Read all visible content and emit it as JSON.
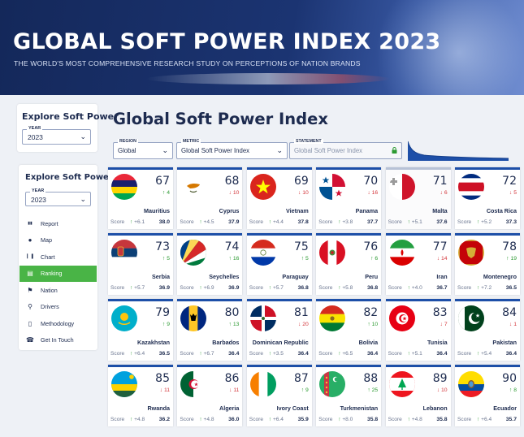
{
  "banner": {
    "title": "GLOBAL SOFT POWER INDEX 2023",
    "subtitle": "THE WORLD'S MOST COMPREHENSIVE RESEARCH STUDY ON PERCEPTIONS OF NATION BRANDS"
  },
  "sidebar_top": {
    "title": "Explore Soft Power",
    "year_label": "YEAR",
    "year_value": "2023"
  },
  "sidebar": {
    "title": "Explore Soft Power",
    "year_label": "YEAR",
    "year_value": "2023",
    "nav": [
      {
        "label": "Report",
        "icon": "book-icon",
        "active": false
      },
      {
        "label": "Map",
        "icon": "globe-icon",
        "active": false
      },
      {
        "label": "Chart",
        "icon": "bar-chart-icon",
        "active": false
      },
      {
        "label": "Ranking",
        "icon": "podium-icon",
        "active": true
      },
      {
        "label": "Nation",
        "icon": "flag-icon",
        "active": false
      },
      {
        "label": "Drivers",
        "icon": "search-icon",
        "active": false
      },
      {
        "label": "Methodology",
        "icon": "document-icon",
        "active": false
      },
      {
        "label": "Get In Touch",
        "icon": "phone-icon",
        "active": false
      }
    ]
  },
  "main": {
    "title": "Global Soft Power Index",
    "filters": {
      "region_label": "REGION",
      "region_value": "Global",
      "metric_label": "METRIC",
      "metric_value": "Global Soft Power Index",
      "statement_label": "STATEMENT",
      "statement_value": "Global Soft Power Index"
    },
    "score_label": "Score",
    "colors": {
      "up": "#2c9a32",
      "down": "#d3363b",
      "active_nav": "#49b446",
      "card_top": "#1d4fa8"
    },
    "cards": [
      {
        "rank": "67",
        "change": "4",
        "dir": "up",
        "name": "Mauritius",
        "delta": "+6.1",
        "score": "38.0",
        "flag": "mauritius-flag-icon"
      },
      {
        "rank": "68",
        "change": "10",
        "dir": "down",
        "name": "Cyprus",
        "delta": "+4.5",
        "score": "37.9",
        "flag": "cyprus-flag-icon"
      },
      {
        "rank": "69",
        "change": "10",
        "dir": "down",
        "name": "Vietnam",
        "delta": "+4.4",
        "score": "37.8",
        "flag": "vietnam-flag-icon"
      },
      {
        "rank": "70",
        "change": "16",
        "dir": "down",
        "name": "Panama",
        "delta": "+3.8",
        "score": "37.7",
        "flag": "panama-flag-icon"
      },
      {
        "rank": "71",
        "change": "6",
        "dir": "down",
        "name": "Malta",
        "delta": "+5.1",
        "score": "37.6",
        "flag": "malta-flag-icon",
        "selected": true
      },
      {
        "rank": "72",
        "change": "5",
        "dir": "down",
        "name": "Costa Rica",
        "delta": "+5.2",
        "score": "37.3",
        "flag": "costa-rica-flag-icon"
      },
      {
        "rank": "73",
        "change": "5",
        "dir": "up",
        "name": "Serbia",
        "delta": "+5.7",
        "score": "36.9",
        "flag": "serbia-flag-icon"
      },
      {
        "rank": "74",
        "change": "16",
        "dir": "up",
        "name": "Seychelles",
        "delta": "+6.9",
        "score": "36.9",
        "flag": "seychelles-flag-icon"
      },
      {
        "rank": "75",
        "change": "5",
        "dir": "up",
        "name": "Paraguay",
        "delta": "+5.7",
        "score": "36.8",
        "flag": "paraguay-flag-icon"
      },
      {
        "rank": "76",
        "change": "6",
        "dir": "up",
        "name": "Peru",
        "delta": "+5.8",
        "score": "36.8",
        "flag": "peru-flag-icon"
      },
      {
        "rank": "77",
        "change": "14",
        "dir": "down",
        "name": "Iran",
        "delta": "+4.0",
        "score": "36.7",
        "flag": "iran-flag-icon"
      },
      {
        "rank": "78",
        "change": "19",
        "dir": "up",
        "name": "Montenegro",
        "delta": "+7.2",
        "score": "36.5",
        "flag": "montenegro-flag-icon"
      },
      {
        "rank": "79",
        "change": "9",
        "dir": "up",
        "name": "Kazakhstan",
        "delta": "+6.4",
        "score": "36.5",
        "flag": "kazakhstan-flag-icon"
      },
      {
        "rank": "80",
        "change": "13",
        "dir": "up",
        "name": "Barbados",
        "delta": "+6.7",
        "score": "36.4",
        "flag": "barbados-flag-icon"
      },
      {
        "rank": "81",
        "change": "20",
        "dir": "down",
        "name": "Dominican Republic",
        "delta": "+3.5",
        "score": "36.4",
        "flag": "dominican-republic-flag-icon"
      },
      {
        "rank": "82",
        "change": "10",
        "dir": "up",
        "name": "Bolivia",
        "delta": "+6.5",
        "score": "36.4",
        "flag": "bolivia-flag-icon"
      },
      {
        "rank": "83",
        "change": "7",
        "dir": "down",
        "name": "Tunisia",
        "delta": "+5.1",
        "score": "36.4",
        "flag": "tunisia-flag-icon"
      },
      {
        "rank": "84",
        "change": "1",
        "dir": "down",
        "name": "Pakistan",
        "delta": "+5.4",
        "score": "36.4",
        "flag": "pakistan-flag-icon"
      },
      {
        "rank": "85",
        "change": "11",
        "dir": "down",
        "name": "Rwanda",
        "delta": "+4.8",
        "score": "36.2",
        "flag": "rwanda-flag-icon"
      },
      {
        "rank": "86",
        "change": "11",
        "dir": "down",
        "name": "Algeria",
        "delta": "+4.8",
        "score": "36.0",
        "flag": "algeria-flag-icon"
      },
      {
        "rank": "87",
        "change": "9",
        "dir": "up",
        "name": "Ivory Coast",
        "delta": "+6.4",
        "score": "35.9",
        "flag": "ivory-coast-flag-icon"
      },
      {
        "rank": "88",
        "change": "25",
        "dir": "up",
        "name": "Turkmenistan",
        "delta": "+8.0",
        "score": "35.8",
        "flag": "turkmenistan-flag-icon"
      },
      {
        "rank": "89",
        "change": "10",
        "dir": "down",
        "name": "Lebanon",
        "delta": "+4.8",
        "score": "35.8",
        "flag": "lebanon-flag-icon"
      },
      {
        "rank": "90",
        "change": "8",
        "dir": "up",
        "name": "Ecuador",
        "delta": "+6.4",
        "score": "35.7",
        "flag": "ecuador-flag-icon"
      }
    ]
  }
}
